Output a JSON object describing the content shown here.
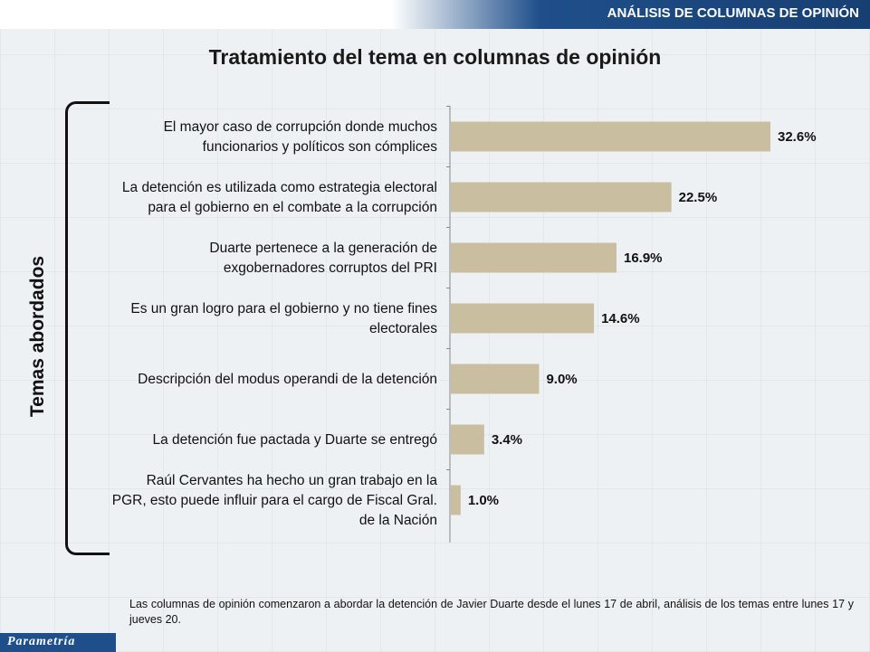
{
  "header": {
    "section_title": "ANÁLISIS DE COLUMNAS DE OPINIÓN"
  },
  "chart_data": {
    "type": "bar",
    "orientation": "horizontal",
    "title": "Tratamiento del tema en columnas de opinión",
    "ylabel": "Temas abordados",
    "xlabel": "",
    "xlim": [
      0,
      35
    ],
    "grid": false,
    "bar_color": "#c9bea0",
    "categories": [
      [
        "El mayor caso de corrupción donde muchos",
        "funcionarios y políticos son cómplices"
      ],
      [
        "La detención es utilizada como estrategia electoral",
        "para el gobierno en el combate a la corrupción"
      ],
      [
        "Duarte pertenece a la generación de",
        "exgobernadores corruptos del PRI"
      ],
      [
        "Es un gran logro para el gobierno y no tiene fines",
        "electorales"
      ],
      [
        "Descripción del modus operandi de la detención"
      ],
      [
        "La detención fue pactada y Duarte se entregó"
      ],
      [
        "Raúl Cervantes ha hecho un gran trabajo en la",
        "PGR, esto puede influir para el cargo de Fiscal Gral.",
        "de la Nación"
      ]
    ],
    "values": [
      32.6,
      22.5,
      16.9,
      14.6,
      9.0,
      3.4,
      1.0
    ],
    "value_labels": [
      "32.6%",
      "22.5%",
      "16.9%",
      "14.6%",
      "9.0%",
      "3.4%",
      "1.0%"
    ]
  },
  "footnote": "Las columnas de opinión comenzaron a abordar la detención de Javier Duarte desde el lunes 17 de abril, análisis de los temas entre lunes 17 y jueves 20.",
  "logo": {
    "text": "Parametría"
  }
}
